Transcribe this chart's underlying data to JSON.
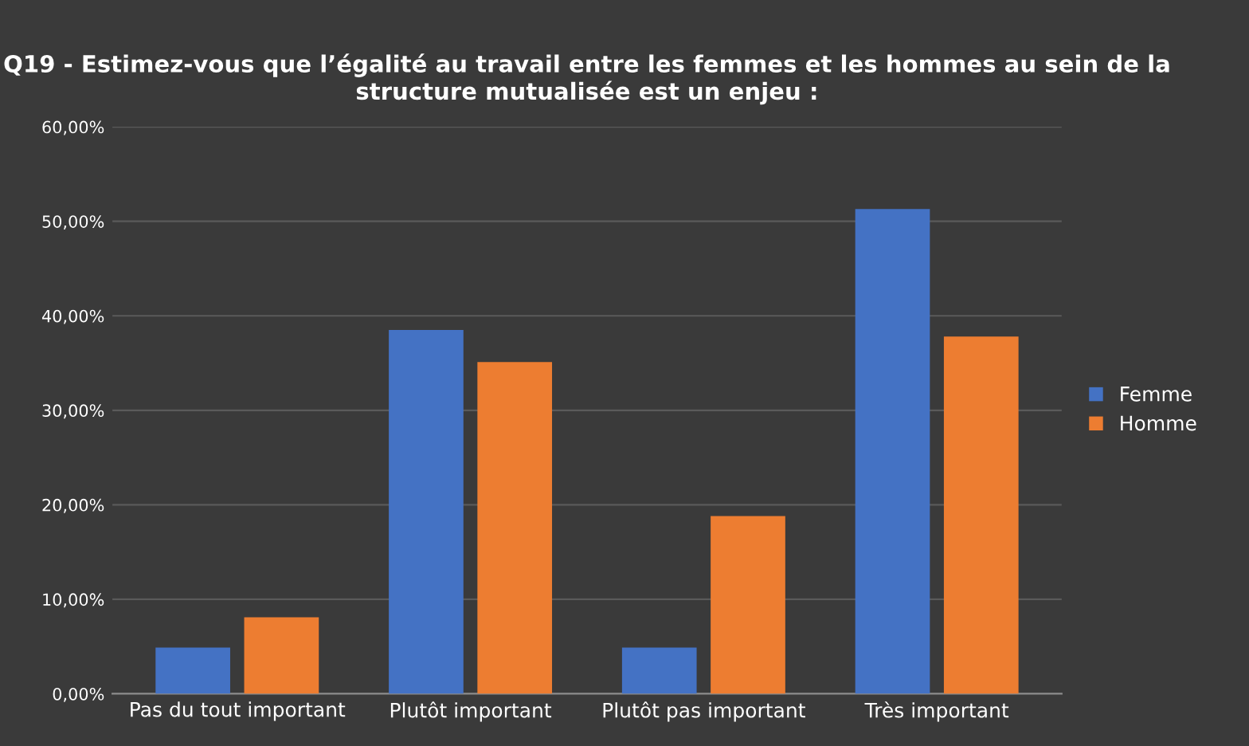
{
  "chart_data": {
    "type": "bar",
    "title": "Q19 - Estimez-vous que l’égalité au travail entre les femmes et les hommes au sein de la structure mutualisée est un enjeu :",
    "categories": [
      "Pas du tout important",
      "Plutôt important",
      "Plutôt pas important",
      "Très important"
    ],
    "series": [
      {
        "name": "Femme",
        "color": "#4472c4",
        "values": [
          4.9,
          38.5,
          4.9,
          51.3
        ]
      },
      {
        "name": "Homme",
        "color": "#ed7d31",
        "values": [
          8.1,
          35.1,
          18.8,
          37.8
        ]
      }
    ],
    "ylim": [
      0,
      60
    ],
    "yticks": [
      {
        "value": 0,
        "label": "0,00%"
      },
      {
        "value": 10,
        "label": "10,00%"
      },
      {
        "value": 20,
        "label": "20,00%"
      },
      {
        "value": 30,
        "label": "30,00%"
      },
      {
        "value": 40,
        "label": "40,00%"
      },
      {
        "value": 50,
        "label": "50,00%"
      },
      {
        "value": 60,
        "label": "60,00%"
      }
    ],
    "grid": "y",
    "legend": "right"
  }
}
